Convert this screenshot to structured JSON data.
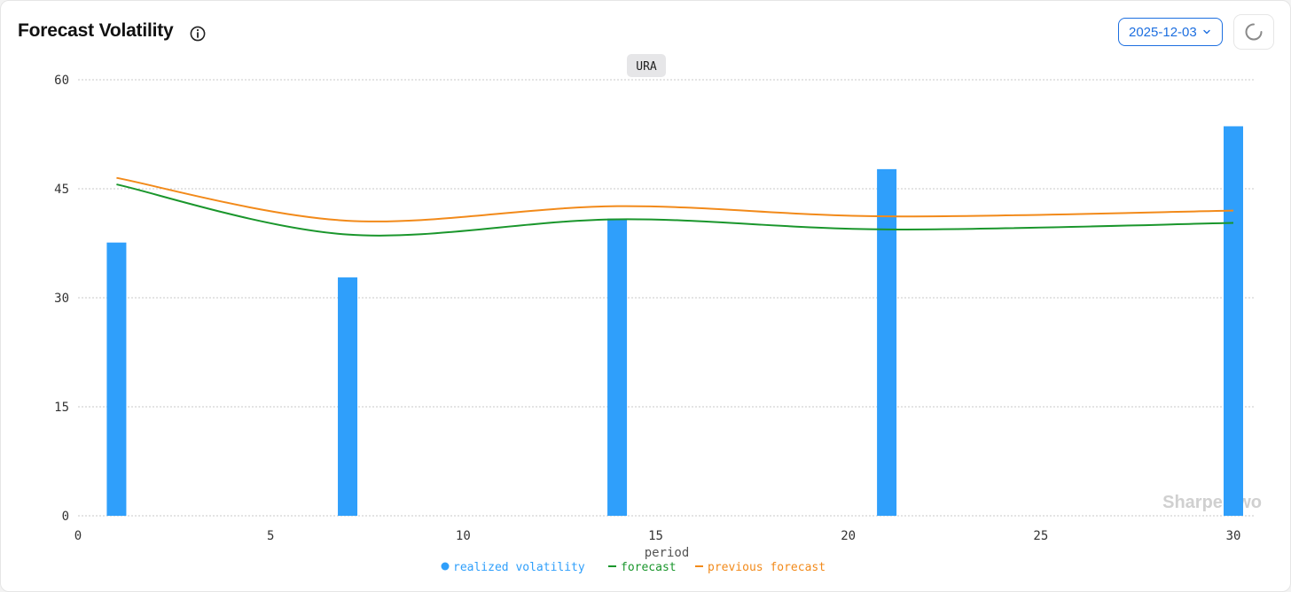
{
  "header": {
    "title": "Forecast Volatility",
    "date_value": "2025-12-03"
  },
  "icons": {
    "info": "info-icon",
    "chevron": "chevron-down-icon",
    "refresh": "spinner-icon"
  },
  "colors": {
    "realized": "#2f9ffb",
    "forecast": "#1a962c",
    "previous_forecast": "#f28a1a",
    "accent": "#1d6fe0"
  },
  "chart_data": {
    "type": "bar",
    "tag": "URA",
    "xlabel": "period",
    "ylabel": "",
    "xlim": [
      0,
      30
    ],
    "ylim": [
      0,
      60
    ],
    "x_ticks": [
      0,
      5,
      10,
      15,
      20,
      25,
      30
    ],
    "y_ticks": [
      0,
      15,
      30,
      45,
      60
    ],
    "grid": "horizontal dotted",
    "legend_position": "bottom-center",
    "watermark": "Sharpe Two",
    "series": [
      {
        "name": "realized volatility",
        "type": "bar",
        "x": [
          1,
          7,
          14,
          21,
          30
        ],
        "values": [
          37.6,
          32.8,
          40.9,
          47.7,
          53.6
        ]
      },
      {
        "name": "forecast",
        "type": "line",
        "x": [
          1,
          7,
          14,
          21,
          30
        ],
        "values": [
          45.6,
          38.7,
          40.8,
          39.4,
          40.3
        ]
      },
      {
        "name": "previous forecast",
        "type": "line",
        "x": [
          1,
          7,
          14,
          21,
          30
        ],
        "values": [
          46.5,
          40.6,
          42.6,
          41.2,
          42.0
        ]
      }
    ]
  }
}
